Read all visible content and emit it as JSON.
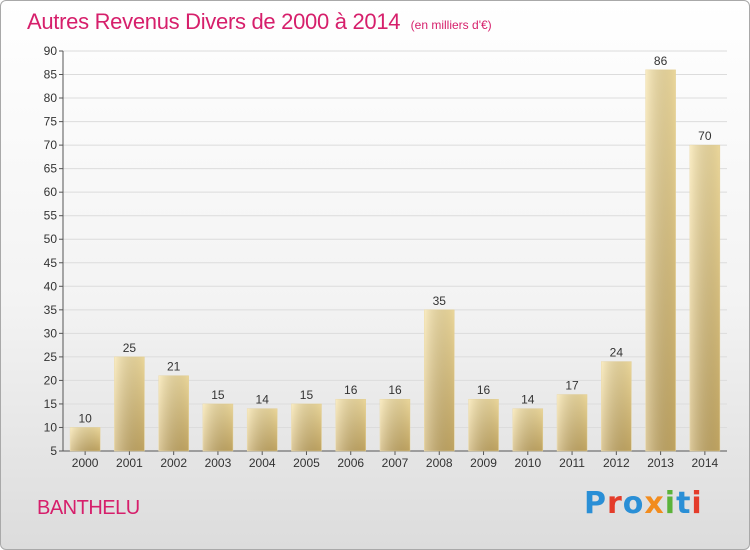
{
  "title": "Autres Revenus Divers de 2000 à 2014",
  "unit": "(en milliers d'€)",
  "commune": "BANTHELU",
  "logo": [
    "P",
    "r",
    "o",
    "x",
    "i",
    "t",
    "i"
  ],
  "colors": {
    "title": "#d61f6b",
    "bar_light": "#f7e2a3",
    "bar_dark": "#c9ac66"
  },
  "chart_data": {
    "type": "bar",
    "categories": [
      "2000",
      "2001",
      "2002",
      "2003",
      "2004",
      "2005",
      "2006",
      "2007",
      "2008",
      "2009",
      "2010",
      "2011",
      "2012",
      "2013",
      "2014"
    ],
    "values": [
      10,
      25,
      21,
      15,
      14,
      15,
      16,
      16,
      35,
      16,
      14,
      17,
      24,
      86,
      70
    ],
    "ylim": [
      5,
      90
    ],
    "yticks": [
      5,
      10,
      15,
      20,
      25,
      30,
      35,
      40,
      45,
      50,
      55,
      60,
      65,
      70,
      75,
      80,
      85,
      90
    ],
    "grid": true,
    "xlabel": "",
    "ylabel": ""
  }
}
